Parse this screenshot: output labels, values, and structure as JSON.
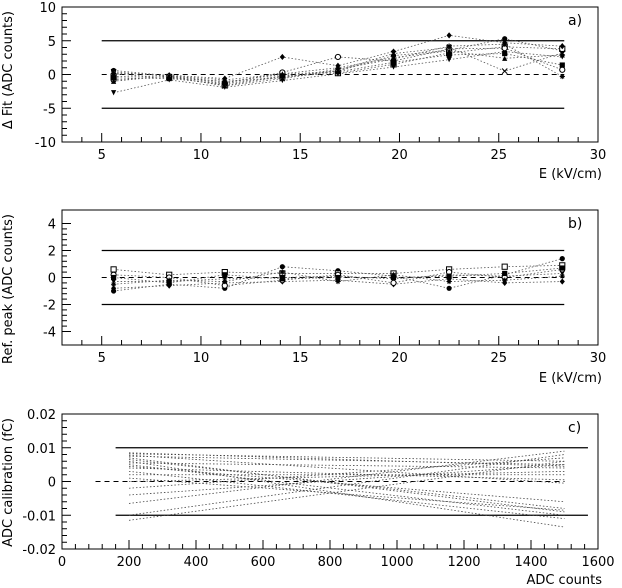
{
  "chart_data": [
    {
      "type": "scatter",
      "panel_label": "a)",
      "xlabel": "E (kV/cm)",
      "ylabel": "Δ Fit (ADC counts)",
      "xlim": [
        3,
        30
      ],
      "ylim": [
        -10,
        10
      ],
      "xticks": [
        5,
        10,
        15,
        20,
        25,
        30
      ],
      "yticks": [
        -10,
        -5,
        0,
        5,
        10
      ],
      "reference_lines": [
        {
          "y": 5,
          "style": "solid"
        },
        {
          "y": -5,
          "style": "solid"
        },
        {
          "y": 0,
          "style": "dashed"
        }
      ],
      "reference_xrange": [
        5,
        28.3
      ],
      "x": [
        5.6,
        8.4,
        11.2,
        14.1,
        16.9,
        19.7,
        22.5,
        25.3,
        28.2
      ],
      "series": [
        {
          "values": [
            0.6,
            -0.2,
            -1.1,
            0.0,
            0.5,
            2.8,
            3.6,
            5.3,
            3.5
          ]
        },
        {
          "values": [
            -0.3,
            -0.4,
            -1.6,
            -0.3,
            0.2,
            1.5,
            3.2,
            4.1,
            3.8
          ]
        },
        {
          "values": [
            -2.7,
            -0.8,
            -1.9,
            -0.9,
            0.1,
            1.1,
            2.2,
            3.4,
            2.6
          ]
        },
        {
          "values": [
            0.2,
            -0.1,
            -0.6,
            2.6,
            1.3,
            3.4,
            5.8,
            4.7,
            4.2
          ]
        },
        {
          "values": [
            -0.8,
            -0.3,
            -1.3,
            0.3,
            2.6,
            2.0,
            3.8,
            3.9,
            0.7
          ]
        },
        {
          "values": [
            0.1,
            -0.5,
            -1.0,
            -0.5,
            0.8,
            2.3,
            4.2,
            4.5,
            -0.3
          ]
        },
        {
          "values": [
            -0.5,
            -0.6,
            -1.4,
            -0.2,
            0.4,
            1.8,
            2.9,
            3.1,
            1.4
          ]
        },
        {
          "values": [
            -1.0,
            -0.2,
            -0.8,
            0.1,
            1.0,
            2.5,
            3.5,
            2.4,
            2.9
          ]
        },
        {
          "values": [
            0.4,
            -0.3,
            -1.7,
            -0.6,
            0.6,
            3.1,
            4.0,
            0.5,
            3.2
          ]
        }
      ]
    },
    {
      "type": "scatter",
      "panel_label": "b)",
      "xlabel": "E (kV/cm)",
      "ylabel": "Ref. peak (ADC counts)",
      "xlim": [
        3,
        30
      ],
      "ylim": [
        -5,
        5
      ],
      "xticks": [
        5,
        10,
        15,
        20,
        25,
        30
      ],
      "yticks": [
        -4,
        -2,
        0,
        2,
        4
      ],
      "reference_lines": [
        {
          "y": 2,
          "style": "solid"
        },
        {
          "y": -2,
          "style": "solid"
        },
        {
          "y": 0,
          "style": "dashed"
        }
      ],
      "reference_xrange": [
        5,
        28.3
      ],
      "x": [
        5.6,
        8.4,
        11.2,
        14.1,
        16.9,
        19.7,
        22.5,
        25.3,
        28.2
      ],
      "series": [
        {
          "values": [
            -1.0,
            -0.5,
            -0.8,
            0.8,
            0.5,
            0.1,
            -0.8,
            0.2,
            1.4
          ]
        },
        {
          "values": [
            0.6,
            0.2,
            0.4,
            0.3,
            0.3,
            0.3,
            0.6,
            0.8,
            0.9
          ]
        },
        {
          "values": [
            -0.3,
            -0.3,
            -0.1,
            0.0,
            0.1,
            -0.1,
            0.2,
            0.1,
            0.3
          ]
        },
        {
          "values": [
            -0.8,
            -0.6,
            -0.4,
            -0.3,
            -0.2,
            -0.5,
            -0.1,
            -0.4,
            -0.3
          ]
        },
        {
          "values": [
            0.2,
            0.0,
            -0.6,
            -0.2,
            0.2,
            -0.4,
            0.4,
            0.0,
            0.6
          ]
        },
        {
          "values": [
            -0.5,
            -0.2,
            -0.3,
            0.4,
            -0.3,
            0.2,
            -0.3,
            -0.2,
            0.1
          ]
        },
        {
          "values": [
            0.0,
            -0.4,
            0.2,
            -0.1,
            0.0,
            0.0,
            0.1,
            0.3,
            0.7
          ]
        }
      ]
    },
    {
      "type": "line",
      "panel_label": "c)",
      "xlabel": "ADC counts",
      "ylabel": "ADC calibration (fC)",
      "xlim": [
        0,
        1600
      ],
      "ylim": [
        -0.02,
        0.02
      ],
      "xticks": [
        0,
        200,
        400,
        600,
        800,
        1000,
        1200,
        1400,
        1600
      ],
      "yticks": [
        -0.02,
        -0.01,
        0,
        0.01,
        0.02
      ],
      "reference_lines": [
        {
          "y": 0.01,
          "style": "solid"
        },
        {
          "y": -0.01,
          "style": "solid"
        },
        {
          "y": 0,
          "style": "dashed"
        }
      ],
      "reference_xrange": [
        160,
        1500
      ],
      "solid_reference_xrange": [
        160,
        1570
      ],
      "dashed_reference_xrange": [
        100,
        1500
      ],
      "x_range": [
        200,
        1500
      ],
      "series": [
        {
          "values": [
            0.0085,
            0.0045
          ]
        },
        {
          "values": [
            0.0082,
            0.006
          ]
        },
        {
          "values": [
            0.0078,
            -0.0005
          ]
        },
        {
          "values": [
            0.0075,
            0.005
          ]
        },
        {
          "values": [
            0.007,
            -0.009
          ]
        },
        {
          "values": [
            0.0065,
            -0.008
          ]
        },
        {
          "values": [
            0.006,
            -0.0135
          ]
        },
        {
          "values": [
            0.0055,
            0.004
          ]
        },
        {
          "values": [
            0.005,
            -0.01
          ]
        },
        {
          "values": [
            0.0045,
            -0.006
          ]
        },
        {
          "values": [
            0.004,
            0.0005
          ]
        },
        {
          "values": [
            0.003,
            -0.011
          ]
        },
        {
          "values": [
            0.002,
            0.002
          ]
        },
        {
          "values": [
            0.001,
            -0.0085
          ]
        },
        {
          "values": [
            0.0,
            0.003
          ]
        },
        {
          "values": [
            -0.002,
            0.007
          ]
        },
        {
          "values": [
            -0.004,
            0.005
          ]
        },
        {
          "values": [
            -0.0065,
            0.009
          ]
        },
        {
          "values": [
            -0.01,
            0.008
          ]
        },
        {
          "values": [
            -0.0115,
            0.006
          ]
        }
      ]
    }
  ]
}
